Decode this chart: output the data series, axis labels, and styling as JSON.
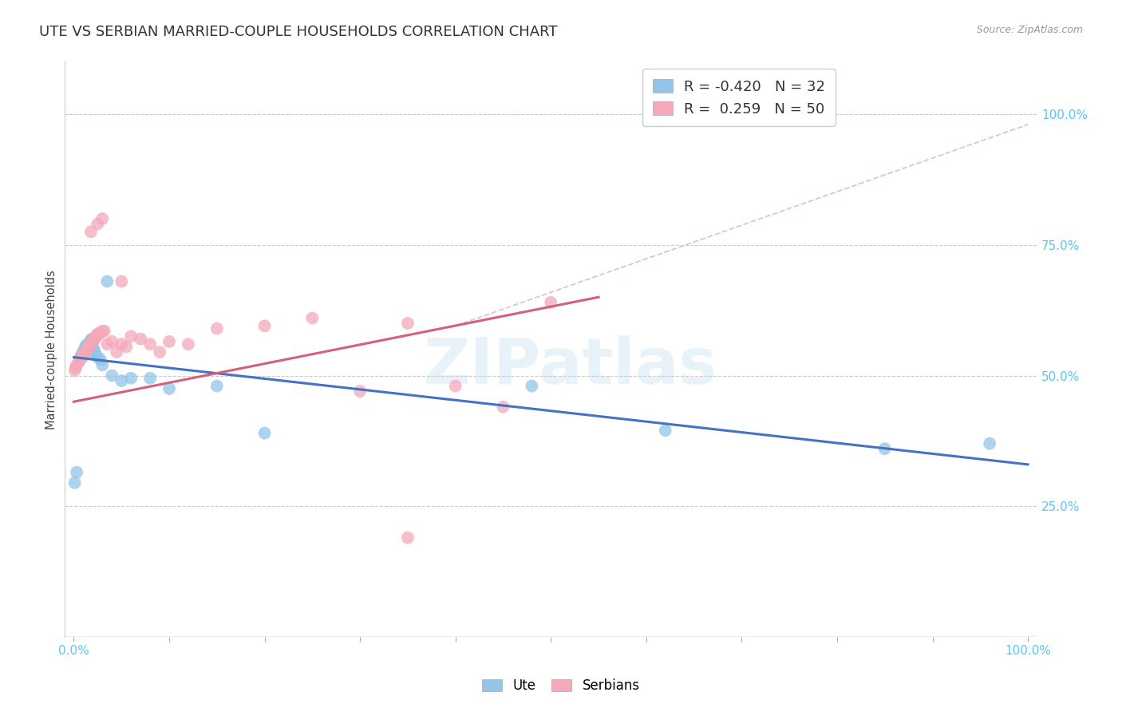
{
  "title": "UTE VS SERBIAN MARRIED-COUPLE HOUSEHOLDS CORRELATION CHART",
  "source": "Source: ZipAtlas.com",
  "ylabel": "Married-couple Households",
  "watermark": "ZIPatlas",
  "ute_R": -0.42,
  "ute_N": 32,
  "serbian_R": 0.259,
  "serbian_N": 50,
  "ute_color": "#92C5E8",
  "serbian_color": "#F4A8BA",
  "ute_line_color": "#4472C4",
  "serbian_line_color": "#D4607A",
  "dashed_line_color": "#DDB8C8",
  "right_axis_color": "#5BC8F0",
  "right_ytick_labels": [
    "100.0%",
    "75.0%",
    "50.0%",
    "25.0%"
  ],
  "right_ytick_positions": [
    1.0,
    0.75,
    0.5,
    0.25
  ],
  "bg_color": "#FFFFFF",
  "title_fontsize": 13,
  "ute_x": [
    0.001,
    0.003,
    0.007,
    0.008,
    0.01,
    0.011,
    0.012,
    0.013,
    0.015,
    0.016,
    0.017,
    0.018,
    0.019,
    0.02,
    0.021,
    0.022,
    0.023,
    0.025,
    0.028,
    0.03,
    0.035,
    0.04,
    0.05,
    0.06,
    0.08,
    0.1,
    0.15,
    0.2,
    0.48,
    0.62,
    0.85,
    0.96
  ],
  "ute_y": [
    0.295,
    0.315,
    0.535,
    0.54,
    0.545,
    0.55,
    0.555,
    0.558,
    0.56,
    0.562,
    0.565,
    0.568,
    0.57,
    0.555,
    0.55,
    0.545,
    0.54,
    0.535,
    0.53,
    0.52,
    0.68,
    0.5,
    0.49,
    0.495,
    0.495,
    0.475,
    0.48,
    0.39,
    0.48,
    0.395,
    0.36,
    0.37
  ],
  "serbian_x": [
    0.001,
    0.002,
    0.003,
    0.005,
    0.006,
    0.008,
    0.009,
    0.01,
    0.011,
    0.012,
    0.013,
    0.014,
    0.015,
    0.016,
    0.017,
    0.018,
    0.019,
    0.02,
    0.021,
    0.022,
    0.023,
    0.024,
    0.025,
    0.027,
    0.03,
    0.032,
    0.035,
    0.04,
    0.045,
    0.05,
    0.055,
    0.06,
    0.07,
    0.08,
    0.09,
    0.1,
    0.12,
    0.15,
    0.2,
    0.25,
    0.3,
    0.35,
    0.4,
    0.45,
    0.5,
    0.018,
    0.025,
    0.03,
    0.05,
    0.35
  ],
  "serbian_y": [
    0.51,
    0.515,
    0.52,
    0.525,
    0.53,
    0.535,
    0.535,
    0.54,
    0.54,
    0.545,
    0.545,
    0.55,
    0.555,
    0.555,
    0.56,
    0.56,
    0.565,
    0.565,
    0.57,
    0.57,
    0.575,
    0.575,
    0.58,
    0.58,
    0.585,
    0.585,
    0.56,
    0.565,
    0.545,
    0.56,
    0.555,
    0.575,
    0.57,
    0.56,
    0.545,
    0.565,
    0.56,
    0.59,
    0.595,
    0.61,
    0.47,
    0.6,
    0.48,
    0.44,
    0.64,
    0.775,
    0.79,
    0.8,
    0.68,
    0.19
  ],
  "ute_line_x0": 0.0,
  "ute_line_y0": 0.535,
  "ute_line_x1": 1.0,
  "ute_line_y1": 0.33,
  "serbian_line_x0": 0.0,
  "serbian_line_y0": 0.45,
  "serbian_line_x1": 0.55,
  "serbian_line_y1": 0.65,
  "dashed_line_x0": 0.4,
  "dashed_line_y0": 0.595,
  "dashed_line_x1": 1.0,
  "dashed_line_y1": 0.98,
  "xlim": [
    -0.01,
    1.01
  ],
  "ylim": [
    0.0,
    1.1
  ]
}
